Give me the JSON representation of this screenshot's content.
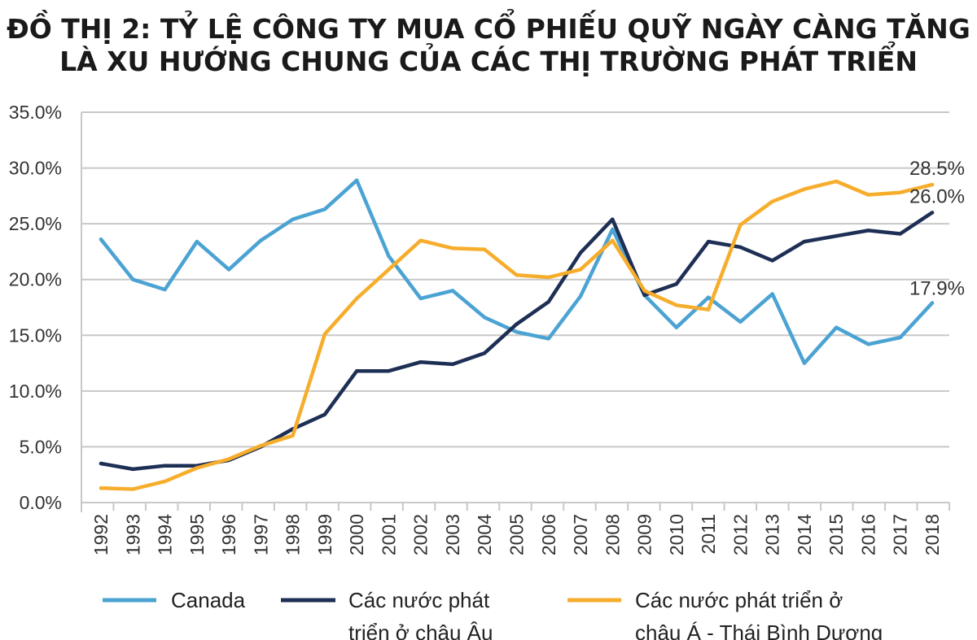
{
  "chart_data": {
    "type": "line",
    "title_lines": [
      "ĐỒ THỊ 2: TỶ LỆ CÔNG TY MUA CỔ PHIẾU QUỸ NGÀY CÀNG TĂNG",
      "LÀ XU HƯỚNG CHUNG CỦA CÁC THỊ TRƯỜNG PHÁT TRIỂN"
    ],
    "xlabel": "",
    "ylabel": "",
    "ylim": [
      0,
      35
    ],
    "ytick_step": 5,
    "y_tick_labels": [
      "0.0%",
      "5.0%",
      "10.0%",
      "15.0%",
      "20.0%",
      "25.0%",
      "30.0%",
      "35.0%"
    ],
    "grid": true,
    "categories": [
      "1992",
      "1993",
      "1994",
      "1995",
      "1996",
      "1997",
      "1998",
      "1999",
      "2000",
      "2001",
      "2002",
      "2003",
      "2004",
      "2005",
      "2006",
      "2007",
      "2008",
      "2009",
      "2010",
      "2011",
      "2012",
      "2013",
      "2014",
      "2015",
      "2016",
      "2017",
      "2018"
    ],
    "series": [
      {
        "name": "Canada",
        "legend_lines": [
          "Canada"
        ],
        "color": "#4ba3d3",
        "values": [
          23.6,
          20.0,
          19.1,
          23.4,
          20.9,
          23.5,
          25.4,
          26.3,
          28.9,
          22.1,
          18.3,
          19.0,
          16.6,
          15.3,
          14.7,
          18.5,
          24.5,
          18.6,
          15.7,
          18.4,
          16.2,
          18.7,
          12.5,
          15.7,
          14.2,
          14.8,
          17.9
        ],
        "end_label": "17.9%"
      },
      {
        "name": "Các nước phát triển ở châu Âu",
        "legend_lines": [
          "Các nước phát",
          "triển ở châu Âu"
        ],
        "color": "#1e2f55",
        "values": [
          3.5,
          3.0,
          3.3,
          3.3,
          3.8,
          5.0,
          6.6,
          7.9,
          11.8,
          11.8,
          12.6,
          12.4,
          13.4,
          16.0,
          18.0,
          22.4,
          25.4,
          18.6,
          19.6,
          23.4,
          22.9,
          21.7,
          23.4,
          23.9,
          24.4,
          24.1,
          26.0
        ],
        "end_label": "26.0%"
      },
      {
        "name": "Các nước phát triển ở châu Á - Thái Bình Dương",
        "legend_lines": [
          "Các nước phát triển ở",
          "châu Á - Thái Bình Dương"
        ],
        "color": "#f7ad2c",
        "values": [
          1.3,
          1.2,
          1.9,
          3.1,
          3.9,
          5.1,
          6.0,
          15.1,
          18.3,
          20.9,
          23.5,
          22.8,
          22.7,
          20.4,
          20.2,
          20.9,
          23.5,
          19.0,
          17.7,
          17.3,
          24.9,
          27.0,
          28.1,
          28.8,
          27.6,
          27.8,
          28.5
        ],
        "end_label": "28.5%"
      }
    ]
  }
}
